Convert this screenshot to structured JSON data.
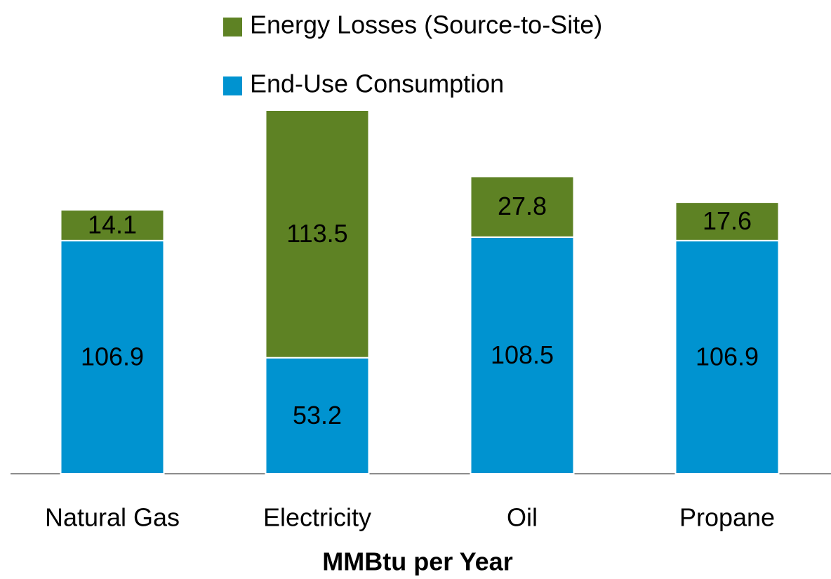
{
  "chart_data": {
    "type": "stacked_bar",
    "x_label": "MMBtu per Year",
    "categories": [
      "Natural Gas",
      "Electricity",
      "Oil",
      "Propane"
    ],
    "series": [
      {
        "name": "End-Use Consumption",
        "color": "#0093d0",
        "values": [
          106.9,
          53.2,
          108.5,
          106.9
        ]
      },
      {
        "name": "Energy Losses (Source-to-Site)",
        "color": "#5e8224",
        "values": [
          14.1,
          113.5,
          27.8,
          17.6
        ]
      }
    ],
    "legend": "top"
  }
}
